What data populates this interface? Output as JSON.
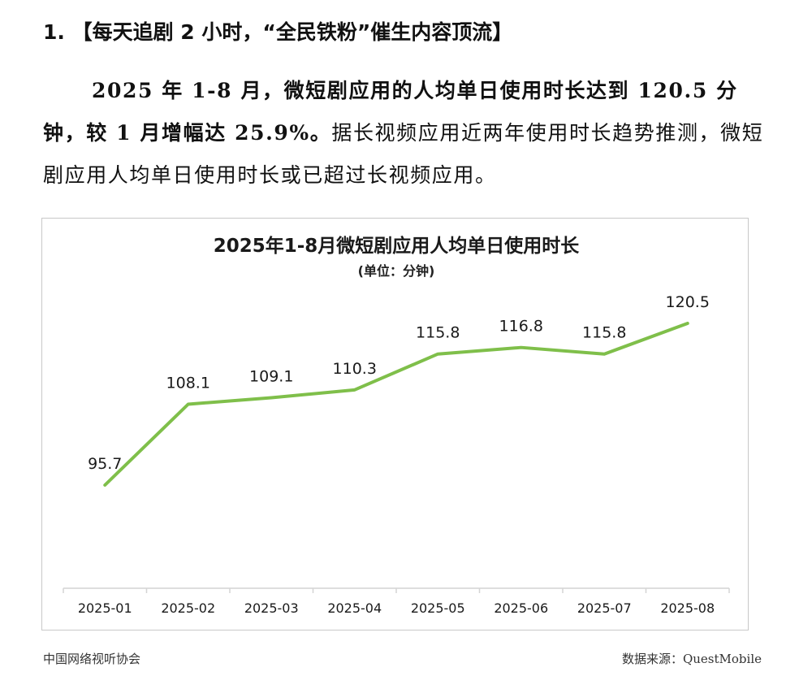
{
  "document": {
    "heading": "1. 【每天追剧 2 小时，“全民铁粉”催生内容顶流】",
    "paragraph_part1": "2025 年 1-8 月，微短剧应用的人均单日使用时长达到 120.5 分钟，较 1 月增幅达 25.9%。",
    "paragraph_part2": "据长视频应用近两年使用时长趋势推测，微短剧应用人均单日使用时长或已超过长视频应用。"
  },
  "chart_data": {
    "type": "line",
    "title": "2025年1-8月微短剧应用人均单日使用时长",
    "subtitle": "(单位：分钟)",
    "categories": [
      "2025-01",
      "2025-02",
      "2025-03",
      "2025-04",
      "2025-05",
      "2025-06",
      "2025-07",
      "2025-08"
    ],
    "series": [
      {
        "values": [
          95.7,
          108.1,
          109.1,
          110.3,
          115.8,
          116.8,
          115.8,
          120.5
        ],
        "color": "#7fbf4a"
      }
    ],
    "grid": false,
    "legend": "none"
  },
  "footer": {
    "left": "中国网络视听协会",
    "right": "数据来源：QuestMobile"
  }
}
